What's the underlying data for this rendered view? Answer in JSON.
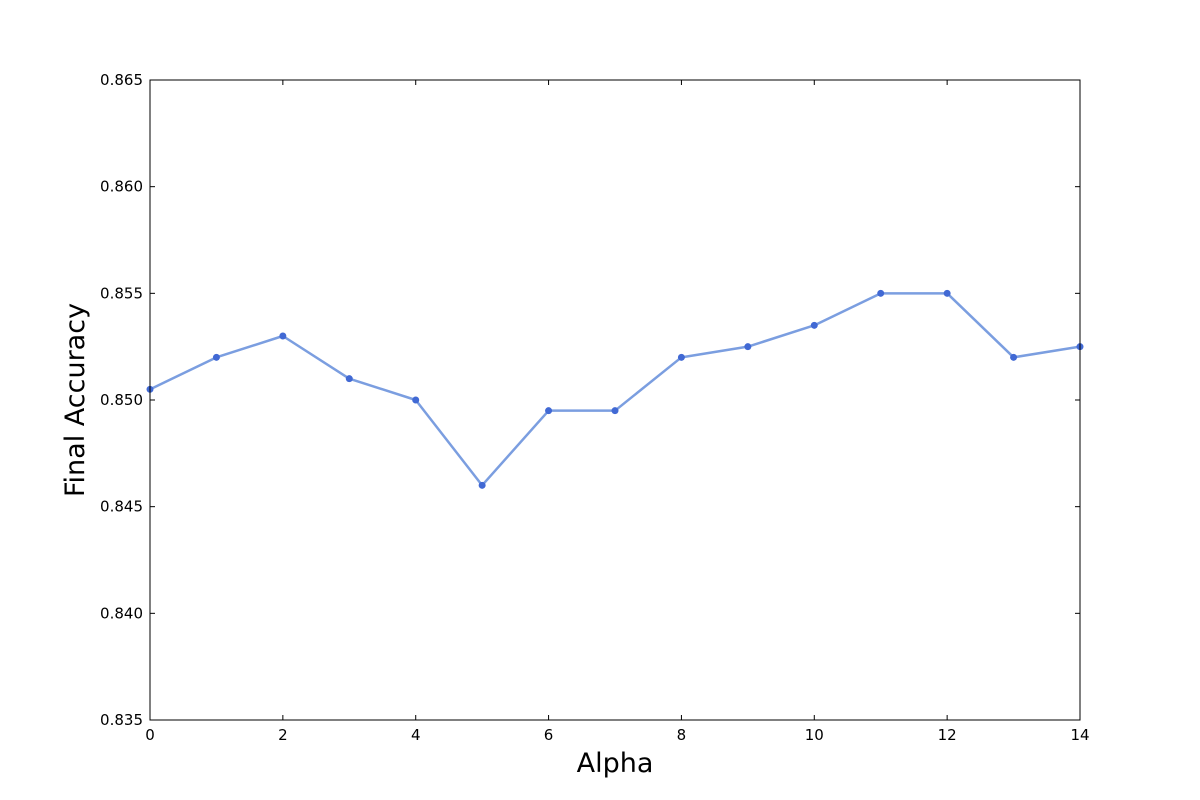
{
  "chart_data": {
    "type": "line",
    "xlabel": "Alpha",
    "ylabel": "Final Accuracy",
    "xlim": [
      0,
      14
    ],
    "ylim": [
      0.835,
      0.865
    ],
    "xticks": [
      0,
      2,
      4,
      6,
      8,
      10,
      12,
      14
    ],
    "xtick_labels": [
      "0",
      "2",
      "4",
      "6",
      "8",
      "10",
      "12",
      "14"
    ],
    "yticks": [
      0.835,
      0.84,
      0.845,
      0.85,
      0.855,
      0.86,
      0.865
    ],
    "ytick_labels": [
      "0.835",
      "0.840",
      "0.845",
      "0.850",
      "0.855",
      "0.860",
      "0.865"
    ],
    "grid": false,
    "series": [
      {
        "x": [
          0,
          1,
          2,
          3,
          4,
          5,
          6,
          7,
          8,
          9,
          10,
          11,
          12,
          13,
          14
        ],
        "y": [
          0.8505,
          0.852,
          0.853,
          0.851,
          0.85,
          0.846,
          0.8495,
          0.8495,
          0.852,
          0.8525,
          0.8535,
          0.855,
          0.855,
          0.852,
          0.8525
        ],
        "color": "#4169d4",
        "line_color": "#7b9ee0"
      }
    ]
  }
}
